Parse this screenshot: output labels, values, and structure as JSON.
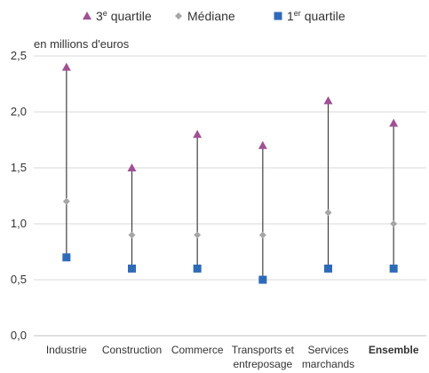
{
  "chart_data": {
    "type": "range",
    "unit_label": "en millions d'euros",
    "categories": [
      "Industrie",
      "Construction",
      "Commerce",
      "Transports et entreposage",
      "Services marchands",
      "Ensemble"
    ],
    "category_lines": [
      [
        "Industrie"
      ],
      [
        "Construction"
      ],
      [
        "Commerce"
      ],
      [
        "Transports et",
        "entreposage"
      ],
      [
        "Services",
        "marchands"
      ],
      [
        "Ensemble"
      ]
    ],
    "bold_category": "Ensemble",
    "ylim": [
      0,
      2.5
    ],
    "yticks": [
      "0,0",
      "0,5",
      "1,0",
      "1,5",
      "2,0",
      "2,5"
    ],
    "ytick_values": [
      0,
      0.5,
      1.0,
      1.5,
      2.0,
      2.5
    ],
    "series": [
      {
        "key": "q3",
        "name_main": "3",
        "name_sup": "e",
        "name_rest": " quartile",
        "marker": "triangle",
        "color": "#a05195",
        "values": [
          2.4,
          1.5,
          1.8,
          1.7,
          2.1,
          1.9
        ]
      },
      {
        "key": "median",
        "name_main": "Médiane",
        "name_sup": "",
        "name_rest": "",
        "marker": "diamond",
        "color": "#a6a6a6",
        "values": [
          1.2,
          0.9,
          0.9,
          0.9,
          1.1,
          1.0
        ]
      },
      {
        "key": "q1",
        "name_main": "1",
        "name_sup": "er",
        "name_rest": " quartile",
        "marker": "square",
        "color": "#2e6ab8",
        "values": [
          0.7,
          0.6,
          0.6,
          0.5,
          0.6,
          0.6
        ]
      }
    ],
    "gridlines": true,
    "legend_position": "top"
  }
}
